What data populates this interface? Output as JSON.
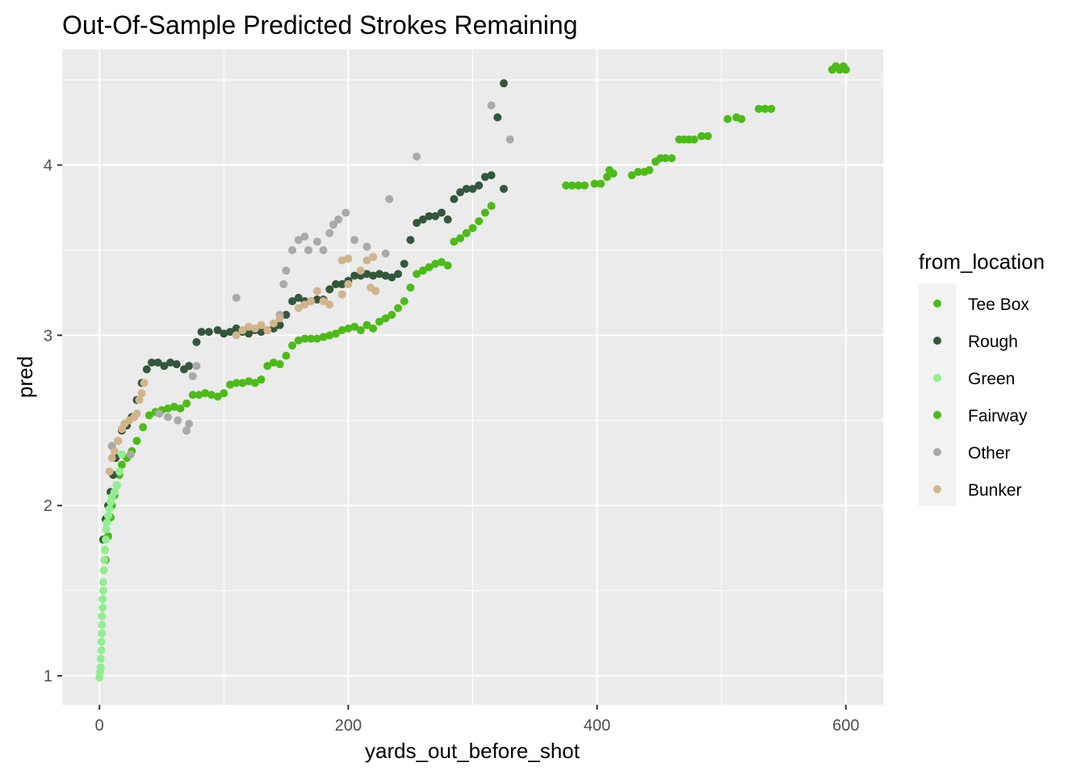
{
  "chart_data": {
    "type": "scatter",
    "title": "Out-Of-Sample Predicted Strokes Remaining",
    "xlabel": "yards_out_before_shot",
    "ylabel": "pred",
    "xlim": [
      -30,
      630
    ],
    "ylim": [
      0.83,
      4.68
    ],
    "xticks": [
      0,
      200,
      400,
      600
    ],
    "yticks": [
      1,
      2,
      3,
      4
    ],
    "grid": true,
    "legend": {
      "title": "from_location",
      "position": "right",
      "entries": [
        "Tee Box",
        "Rough",
        "Green",
        "Fairway",
        "Other",
        "Bunker"
      ]
    },
    "series": [
      {
        "name": "Tee Box",
        "color": "#4cbb17",
        "points": [
          [
            375,
            3.88
          ],
          [
            380,
            3.88
          ],
          [
            385,
            3.88
          ],
          [
            390,
            3.88
          ],
          [
            398,
            3.89
          ],
          [
            403,
            3.89
          ],
          [
            408,
            3.93
          ],
          [
            410,
            3.97
          ],
          [
            413,
            3.95
          ],
          [
            428,
            3.94
          ],
          [
            433,
            3.96
          ],
          [
            438,
            3.96
          ],
          [
            442,
            3.97
          ],
          [
            447,
            4.02
          ],
          [
            451,
            4.04
          ],
          [
            455,
            4.04
          ],
          [
            460,
            4.04
          ],
          [
            466,
            4.15
          ],
          [
            470,
            4.15
          ],
          [
            474,
            4.15
          ],
          [
            478,
            4.15
          ],
          [
            484,
            4.17
          ],
          [
            489,
            4.17
          ],
          [
            505,
            4.27
          ],
          [
            512,
            4.28
          ],
          [
            516,
            4.27
          ],
          [
            530,
            4.33
          ],
          [
            535,
            4.33
          ],
          [
            540,
            4.33
          ],
          [
            589,
            4.56
          ],
          [
            592,
            4.58
          ],
          [
            595,
            4.56
          ],
          [
            598,
            4.58
          ],
          [
            600,
            4.56
          ]
        ]
      },
      {
        "name": "Fairway",
        "color": "#4cbb17",
        "points": [
          [
            5,
            1.68
          ],
          [
            7,
            1.82
          ],
          [
            9,
            1.93
          ],
          [
            10,
            2.0
          ],
          [
            12,
            2.06
          ],
          [
            14,
            2.12
          ],
          [
            16,
            2.18
          ],
          [
            18,
            2.24
          ],
          [
            22,
            2.28
          ],
          [
            26,
            2.32
          ],
          [
            30,
            2.38
          ],
          [
            35,
            2.46
          ],
          [
            40,
            2.53
          ],
          [
            45,
            2.55
          ],
          [
            50,
            2.56
          ],
          [
            55,
            2.57
          ],
          [
            60,
            2.58
          ],
          [
            65,
            2.57
          ],
          [
            70,
            2.6
          ],
          [
            75,
            2.65
          ],
          [
            80,
            2.65
          ],
          [
            85,
            2.66
          ],
          [
            90,
            2.65
          ],
          [
            95,
            2.64
          ],
          [
            100,
            2.66
          ],
          [
            105,
            2.71
          ],
          [
            110,
            2.72
          ],
          [
            115,
            2.72
          ],
          [
            120,
            2.73
          ],
          [
            125,
            2.72
          ],
          [
            130,
            2.74
          ],
          [
            135,
            2.82
          ],
          [
            140,
            2.84
          ],
          [
            145,
            2.83
          ],
          [
            150,
            2.88
          ],
          [
            155,
            2.94
          ],
          [
            160,
            2.97
          ],
          [
            165,
            2.98
          ],
          [
            170,
            2.98
          ],
          [
            175,
            2.98
          ],
          [
            180,
            2.99
          ],
          [
            185,
            3.0
          ],
          [
            190,
            3.01
          ],
          [
            195,
            3.03
          ],
          [
            200,
            3.04
          ],
          [
            205,
            3.05
          ],
          [
            210,
            3.03
          ],
          [
            215,
            3.06
          ],
          [
            220,
            3.04
          ],
          [
            225,
            3.08
          ],
          [
            230,
            3.1
          ],
          [
            235,
            3.12
          ],
          [
            240,
            3.16
          ],
          [
            245,
            3.2
          ],
          [
            250,
            3.28
          ],
          [
            255,
            3.36
          ],
          [
            260,
            3.38
          ],
          [
            265,
            3.4
          ],
          [
            270,
            3.42
          ],
          [
            275,
            3.43
          ],
          [
            280,
            3.41
          ],
          [
            285,
            3.55
          ],
          [
            290,
            3.57
          ],
          [
            295,
            3.6
          ],
          [
            300,
            3.63
          ],
          [
            305,
            3.67
          ],
          [
            310,
            3.72
          ],
          [
            315,
            3.76
          ]
        ]
      },
      {
        "name": "Rough",
        "color": "#33573a",
        "points": [
          [
            3,
            1.8
          ],
          [
            5,
            1.92
          ],
          [
            7,
            2.0
          ],
          [
            9,
            2.08
          ],
          [
            11,
            2.18
          ],
          [
            13,
            2.28
          ],
          [
            15,
            2.38
          ],
          [
            18,
            2.44
          ],
          [
            22,
            2.47
          ],
          [
            26,
            2.52
          ],
          [
            30,
            2.62
          ],
          [
            34,
            2.72
          ],
          [
            38,
            2.8
          ],
          [
            42,
            2.84
          ],
          [
            47,
            2.84
          ],
          [
            52,
            2.82
          ],
          [
            57,
            2.84
          ],
          [
            62,
            2.83
          ],
          [
            68,
            2.8
          ],
          [
            72,
            2.82
          ],
          [
            78,
            2.96
          ],
          [
            82,
            3.02
          ],
          [
            88,
            3.02
          ],
          [
            95,
            3.03
          ],
          [
            100,
            3.01
          ],
          [
            105,
            3.02
          ],
          [
            110,
            3.04
          ],
          [
            115,
            3.02
          ],
          [
            120,
            3.01
          ],
          [
            125,
            3.03
          ],
          [
            130,
            3.02
          ],
          [
            135,
            3.03
          ],
          [
            140,
            3.04
          ],
          [
            145,
            3.06
          ],
          [
            150,
            3.12
          ],
          [
            155,
            3.2
          ],
          [
            160,
            3.22
          ],
          [
            165,
            3.2
          ],
          [
            170,
            3.2
          ],
          [
            175,
            3.21
          ],
          [
            180,
            3.21
          ],
          [
            185,
            3.27
          ],
          [
            190,
            3.3
          ],
          [
            195,
            3.3
          ],
          [
            200,
            3.32
          ],
          [
            205,
            3.35
          ],
          [
            210,
            3.35
          ],
          [
            215,
            3.36
          ],
          [
            220,
            3.35
          ],
          [
            225,
            3.36
          ],
          [
            230,
            3.35
          ],
          [
            235,
            3.34
          ],
          [
            240,
            3.36
          ],
          [
            245,
            3.42
          ],
          [
            250,
            3.56
          ],
          [
            255,
            3.66
          ],
          [
            260,
            3.68
          ],
          [
            265,
            3.7
          ],
          [
            270,
            3.7
          ],
          [
            275,
            3.72
          ],
          [
            280,
            3.68
          ],
          [
            285,
            3.8
          ],
          [
            290,
            3.84
          ],
          [
            295,
            3.86
          ],
          [
            300,
            3.86
          ],
          [
            305,
            3.88
          ],
          [
            310,
            3.93
          ],
          [
            315,
            3.94
          ],
          [
            320,
            4.28
          ],
          [
            325,
            4.48
          ],
          [
            325,
            3.86
          ]
        ]
      },
      {
        "name": "Green",
        "color": "#90ee90",
        "points": [
          [
            0,
            0.99
          ],
          [
            0.5,
            1.02
          ],
          [
            1,
            1.05
          ],
          [
            1,
            1.1
          ],
          [
            1.5,
            1.15
          ],
          [
            1.5,
            1.2
          ],
          [
            2,
            1.25
          ],
          [
            2,
            1.3
          ],
          [
            2,
            1.35
          ],
          [
            2.5,
            1.4
          ],
          [
            2.5,
            1.45
          ],
          [
            3,
            1.5
          ],
          [
            3,
            1.55
          ],
          [
            3.5,
            1.62
          ],
          [
            4,
            1.68
          ],
          [
            4.5,
            1.74
          ],
          [
            5,
            1.8
          ],
          [
            5.5,
            1.86
          ],
          [
            6,
            1.9
          ],
          [
            7,
            1.94
          ],
          [
            8,
            1.98
          ],
          [
            9,
            2.02
          ],
          [
            10,
            2.05
          ],
          [
            12,
            2.08
          ],
          [
            14,
            2.12
          ],
          [
            16,
            2.2
          ],
          [
            18,
            2.3
          ]
        ]
      },
      {
        "name": "Other",
        "color": "#a9a9a9",
        "points": [
          [
            48,
            2.54
          ],
          [
            55,
            2.52
          ],
          [
            63,
            2.5
          ],
          [
            70,
            2.44
          ],
          [
            72,
            2.48
          ],
          [
            75,
            2.76
          ],
          [
            78,
            2.82
          ],
          [
            110,
            3.22
          ],
          [
            145,
            3.12
          ],
          [
            148,
            3.3
          ],
          [
            150,
            3.38
          ],
          [
            155,
            3.5
          ],
          [
            160,
            3.56
          ],
          [
            165,
            3.58
          ],
          [
            168,
            3.5
          ],
          [
            175,
            3.55
          ],
          [
            180,
            3.5
          ],
          [
            185,
            3.6
          ],
          [
            188,
            3.65
          ],
          [
            192,
            3.68
          ],
          [
            198,
            3.72
          ],
          [
            205,
            3.56
          ],
          [
            215,
            3.52
          ],
          [
            230,
            3.48
          ],
          [
            233,
            3.8
          ],
          [
            255,
            4.05
          ],
          [
            330,
            4.15
          ],
          [
            315,
            4.35
          ],
          [
            10,
            2.35
          ],
          [
            25,
            2.3
          ]
        ]
      },
      {
        "name": "Bunker",
        "color": "#d2b48c",
        "points": [
          [
            8,
            2.2
          ],
          [
            10,
            2.28
          ],
          [
            12,
            2.32
          ],
          [
            15,
            2.38
          ],
          [
            18,
            2.45
          ],
          [
            20,
            2.48
          ],
          [
            24,
            2.5
          ],
          [
            28,
            2.52
          ],
          [
            30,
            2.54
          ],
          [
            32,
            2.62
          ],
          [
            34,
            2.66
          ],
          [
            36,
            2.72
          ],
          [
            110,
            3.0
          ],
          [
            115,
            3.03
          ],
          [
            120,
            3.05
          ],
          [
            125,
            3.04
          ],
          [
            130,
            3.06
          ],
          [
            135,
            3.03
          ],
          [
            140,
            3.07
          ],
          [
            145,
            3.1
          ],
          [
            160,
            3.16
          ],
          [
            165,
            3.18
          ],
          [
            170,
            3.2
          ],
          [
            175,
            3.26
          ],
          [
            180,
            3.2
          ],
          [
            185,
            3.18
          ],
          [
            195,
            3.24
          ],
          [
            200,
            3.3
          ],
          [
            195,
            3.44
          ],
          [
            200,
            3.45
          ],
          [
            210,
            3.38
          ],
          [
            215,
            3.44
          ],
          [
            220,
            3.46
          ],
          [
            218,
            3.28
          ],
          [
            222,
            3.26
          ]
        ]
      }
    ]
  }
}
